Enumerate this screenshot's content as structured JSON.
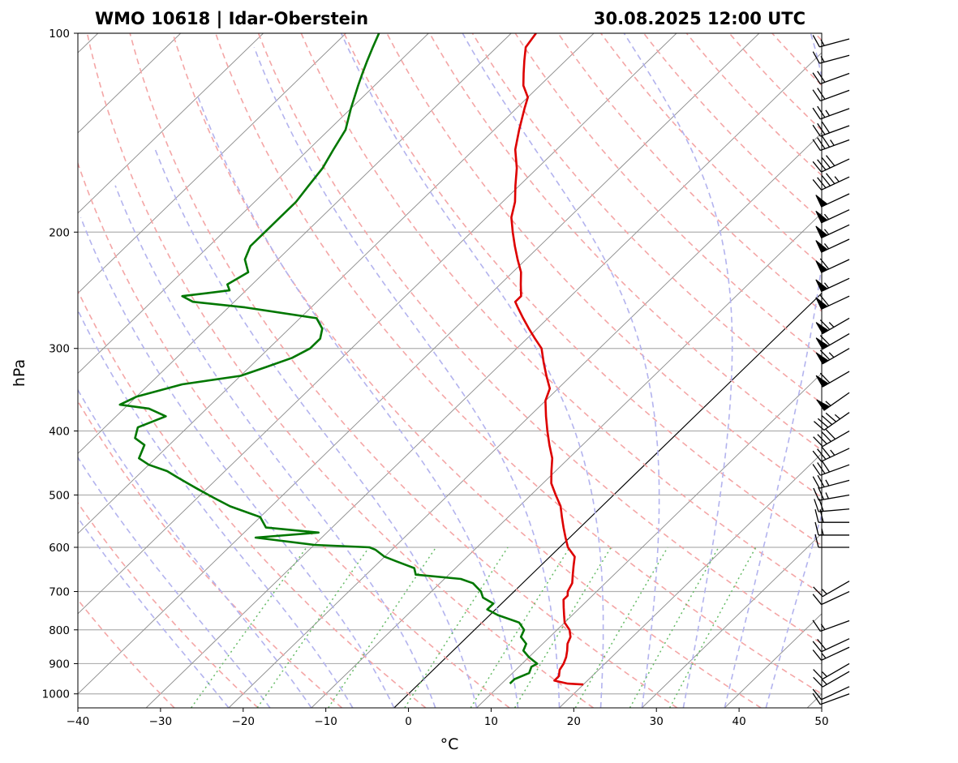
{
  "title_left": "WMO 10618 | Idar-Oberstein",
  "title_right": "30.08.2025 12:00 UTC",
  "chart_data": {
    "type": "skew-t log-p sounding",
    "xlabel": "°C",
    "ylabel": "hPa",
    "xlim": [
      -40,
      50
    ],
    "ylim": [
      1050,
      100
    ],
    "yscale": "log",
    "x_ticks": [
      "−40",
      "−30",
      "−20",
      "−10",
      "0",
      "10",
      "20",
      "30",
      "40",
      "50"
    ],
    "y_ticks": [
      "1000",
      "900",
      "800",
      "700",
      "600",
      "500",
      "400",
      "300",
      "200",
      "100"
    ],
    "grid": "horizontal lines at pressure ticks",
    "series": [
      {
        "role": "temperature",
        "color": "#dd0000",
        "points": [
          [
            968,
            20
          ],
          [
            965,
            18
          ],
          [
            955,
            16
          ],
          [
            940,
            16
          ],
          [
            920,
            15.3
          ],
          [
            900,
            15
          ],
          [
            880,
            14.5
          ],
          [
            860,
            13.8
          ],
          [
            840,
            13
          ],
          [
            820,
            12.5
          ],
          [
            800,
            11.5
          ],
          [
            780,
            10
          ],
          [
            760,
            9
          ],
          [
            740,
            8
          ],
          [
            720,
            7
          ],
          [
            710,
            7
          ],
          [
            700,
            6.5
          ],
          [
            680,
            6
          ],
          [
            660,
            5
          ],
          [
            640,
            4
          ],
          [
            620,
            3
          ],
          [
            600,
            1
          ],
          [
            580,
            -0.5
          ],
          [
            560,
            -2
          ],
          [
            540,
            -3.5
          ],
          [
            520,
            -5
          ],
          [
            500,
            -7
          ],
          [
            480,
            -9
          ],
          [
            460,
            -10.5
          ],
          [
            440,
            -12
          ],
          [
            420,
            -14
          ],
          [
            400,
            -16
          ],
          [
            380,
            -18
          ],
          [
            360,
            -20
          ],
          [
            345,
            -21
          ],
          [
            330,
            -23
          ],
          [
            315,
            -25
          ],
          [
            300,
            -27
          ],
          [
            290,
            -29
          ],
          [
            280,
            -31
          ],
          [
            270,
            -33
          ],
          [
            260,
            -35
          ],
          [
            255,
            -36
          ],
          [
            250,
            -36
          ],
          [
            240,
            -37.5
          ],
          [
            230,
            -39
          ],
          [
            220,
            -41
          ],
          [
            210,
            -43
          ],
          [
            200,
            -45
          ],
          [
            190,
            -47
          ],
          [
            180,
            -48.5
          ],
          [
            170,
            -50.5
          ],
          [
            160,
            -52.5
          ],
          [
            150,
            -55
          ],
          [
            140,
            -57
          ],
          [
            130,
            -59
          ],
          [
            125,
            -60
          ],
          [
            120,
            -62
          ],
          [
            115,
            -63.5
          ],
          [
            110,
            -65
          ],
          [
            105,
            -66.5
          ],
          [
            100,
            -67
          ]
        ]
      },
      {
        "role": "dewpoint",
        "color": "#007700",
        "points": [
          [
            965,
            11
          ],
          [
            950,
            11
          ],
          [
            930,
            12
          ],
          [
            910,
            11.5
          ],
          [
            900,
            11.8
          ],
          [
            880,
            10
          ],
          [
            860,
            8.5
          ],
          [
            840,
            8
          ],
          [
            820,
            6.5
          ],
          [
            800,
            6
          ],
          [
            780,
            4.5
          ],
          [
            760,
            1
          ],
          [
            745,
            -1
          ],
          [
            730,
            -1
          ],
          [
            715,
            -3
          ],
          [
            700,
            -4
          ],
          [
            680,
            -6
          ],
          [
            670,
            -8
          ],
          [
            660,
            -14
          ],
          [
            645,
            -15
          ],
          [
            630,
            -18
          ],
          [
            620,
            -20
          ],
          [
            605,
            -22
          ],
          [
            600,
            -23
          ],
          [
            595,
            -30
          ],
          [
            580,
            -38
          ],
          [
            570,
            -31
          ],
          [
            560,
            -38
          ],
          [
            540,
            -40
          ],
          [
            520,
            -45
          ],
          [
            505,
            -48
          ],
          [
            490,
            -51
          ],
          [
            480,
            -53
          ],
          [
            470,
            -55
          ],
          [
            460,
            -57
          ],
          [
            450,
            -60
          ],
          [
            440,
            -62
          ],
          [
            420,
            -63
          ],
          [
            410,
            -65
          ],
          [
            395,
            -66
          ],
          [
            380,
            -64
          ],
          [
            370,
            -67
          ],
          [
            365,
            -71
          ],
          [
            355,
            -70
          ],
          [
            340,
            -66
          ],
          [
            330,
            -60
          ],
          [
            320,
            -58
          ],
          [
            310,
            -56
          ],
          [
            300,
            -55
          ],
          [
            290,
            -55
          ],
          [
            280,
            -56
          ],
          [
            270,
            -58
          ],
          [
            260,
            -68
          ],
          [
            255,
            -75
          ],
          [
            250,
            -77
          ],
          [
            245,
            -72
          ],
          [
            240,
            -73
          ],
          [
            230,
            -72
          ],
          [
            220,
            -74
          ],
          [
            210,
            -75
          ],
          [
            200,
            -75
          ],
          [
            190,
            -75
          ],
          [
            180,
            -75
          ],
          [
            170,
            -75.5
          ],
          [
            160,
            -76
          ],
          [
            150,
            -77
          ],
          [
            140,
            -78
          ],
          [
            130,
            -80
          ],
          [
            120,
            -82
          ],
          [
            115,
            -83
          ],
          [
            110,
            -84
          ],
          [
            105,
            -85
          ],
          [
            100,
            -86
          ]
        ]
      }
    ],
    "wind_barbs": [
      {
        "p": 1000,
        "dir": 250,
        "kt": 10
      },
      {
        "p": 975,
        "dir": 245,
        "kt": 10
      },
      {
        "p": 925,
        "dir": 240,
        "kt": 15
      },
      {
        "p": 900,
        "dir": 240,
        "kt": 15
      },
      {
        "p": 850,
        "dir": 245,
        "kt": 15
      },
      {
        "p": 825,
        "dir": 245,
        "kt": 20
      },
      {
        "p": 775,
        "dir": 250,
        "kt": 15
      },
      {
        "p": 700,
        "dir": 245,
        "kt": 10
      },
      {
        "p": 675,
        "dir": 240,
        "kt": 15
      },
      {
        "p": 600,
        "dir": 270,
        "kt": 10
      },
      {
        "p": 575,
        "dir": 270,
        "kt": 15
      },
      {
        "p": 550,
        "dir": 270,
        "kt": 20
      },
      {
        "p": 525,
        "dir": 265,
        "kt": 20
      },
      {
        "p": 500,
        "dir": 260,
        "kt": 25
      },
      {
        "p": 475,
        "dir": 255,
        "kt": 25
      },
      {
        "p": 450,
        "dir": 250,
        "kt": 30
      },
      {
        "p": 425,
        "dir": 245,
        "kt": 35
      },
      {
        "p": 400,
        "dir": 240,
        "kt": 40
      },
      {
        "p": 375,
        "dir": 235,
        "kt": 45
      },
      {
        "p": 350,
        "dir": 235,
        "kt": 55
      },
      {
        "p": 325,
        "dir": 240,
        "kt": 60
      },
      {
        "p": 300,
        "dir": 240,
        "kt": 65
      },
      {
        "p": 285,
        "dir": 240,
        "kt": 60
      },
      {
        "p": 270,
        "dir": 240,
        "kt": 65
      },
      {
        "p": 250,
        "dir": 245,
        "kt": 60
      },
      {
        "p": 235,
        "dir": 245,
        "kt": 55
      },
      {
        "p": 220,
        "dir": 245,
        "kt": 60
      },
      {
        "p": 205,
        "dir": 245,
        "kt": 55
      },
      {
        "p": 195,
        "dir": 245,
        "kt": 55
      },
      {
        "p": 185,
        "dir": 245,
        "kt": 55
      },
      {
        "p": 175,
        "dir": 245,
        "kt": 50
      },
      {
        "p": 165,
        "dir": 245,
        "kt": 45
      },
      {
        "p": 155,
        "dir": 245,
        "kt": 40
      },
      {
        "p": 145,
        "dir": 250,
        "kt": 35
      },
      {
        "p": 138,
        "dir": 250,
        "kt": 30
      },
      {
        "p": 130,
        "dir": 250,
        "kt": 25
      },
      {
        "p": 122,
        "dir": 250,
        "kt": 20
      },
      {
        "p": 115,
        "dir": 250,
        "kt": 20
      },
      {
        "p": 108,
        "dir": 255,
        "kt": 15
      },
      {
        "p": 102,
        "dir": 255,
        "kt": 15
      }
    ],
    "background_lines": {
      "isotherms": "thin gray solid, skewed 45°",
      "zero_isotherm": "black solid",
      "dry_adiabats": "light red dashed",
      "moist_adiabats": "light blue dashed",
      "mixing_ratio_lines": "green dotted, 1000–600 hPa"
    }
  }
}
